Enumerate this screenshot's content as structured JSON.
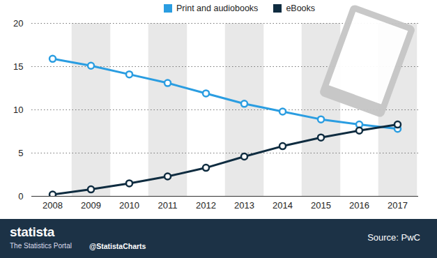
{
  "chart_data": {
    "type": "line",
    "categories": [
      "2008",
      "2009",
      "2010",
      "2011",
      "2012",
      "2013",
      "2014",
      "2015",
      "2016",
      "2017"
    ],
    "series": [
      {
        "name": "Print and audiobooks",
        "color": "#2a9de1",
        "values": [
          15.9,
          15.1,
          14.1,
          13.1,
          11.9,
          10.7,
          9.8,
          8.9,
          8.3,
          7.8
        ]
      },
      {
        "name": "eBooks",
        "color": "#0f2c40",
        "values": [
          0.2,
          0.8,
          1.5,
          2.3,
          3.3,
          4.6,
          5.8,
          6.8,
          7.6,
          8.3
        ]
      }
    ],
    "ylim": [
      0,
      20
    ],
    "yticks": [
      0,
      5,
      10,
      15,
      20
    ],
    "grid": true,
    "marker": "circle",
    "legend": "top",
    "annotations": [
      "statista",
      "The Statistics Portal",
      "@StatistaCharts",
      "Source: PwC"
    ]
  }
}
